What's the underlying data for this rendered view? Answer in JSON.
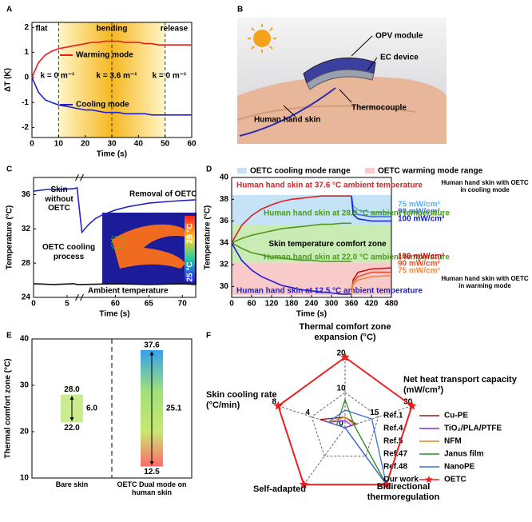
{
  "chart_data": [
    {
      "type": "line",
      "label": "A",
      "xlabel": "Time (s)",
      "ylabel": "ΔT (K)",
      "x": [
        0,
        2.5,
        5,
        7.5,
        10,
        12.5,
        15,
        17.5,
        20,
        22.5,
        25,
        27.5,
        30,
        32.5,
        35,
        37.5,
        40,
        42.5,
        45,
        47.5,
        50,
        52.5,
        55,
        57.5,
        60
      ],
      "xlim": [
        0,
        60
      ],
      "xticks": [
        0,
        10,
        20,
        30,
        40,
        50,
        60
      ],
      "ylim": [
        -2.4,
        2.2
      ],
      "yticks": [
        -2,
        -1,
        0,
        1,
        2
      ],
      "shade": [
        10,
        50
      ],
      "vlines": [
        10,
        30,
        50
      ],
      "annotations": [
        "flat",
        "bending",
        "release",
        "k = 0 m⁻¹",
        "k = 3.6 m⁻¹",
        "k = 0 m⁻¹"
      ],
      "series": [
        {
          "name": "Warming mode",
          "color": "#e8191c",
          "values": [
            0,
            0.6,
            0.9,
            1.05,
            1.15,
            1.2,
            1.25,
            1.3,
            1.35,
            1.4,
            1.4,
            1.45,
            1.45,
            1.45,
            1.4,
            1.4,
            1.4,
            1.35,
            1.35,
            1.3,
            1.3,
            1.3,
            1.3,
            1.3,
            1.3
          ]
        },
        {
          "name": "Cooling mode",
          "color": "#1f1fd6",
          "values": [
            0,
            -0.6,
            -0.9,
            -1.0,
            -1.1,
            -1.15,
            -1.2,
            -1.25,
            -1.3,
            -1.3,
            -1.35,
            -1.4,
            -1.4,
            -1.4,
            -1.45,
            -1.45,
            -1.45,
            -1.45,
            -1.5,
            -1.5,
            -1.5,
            -1.5,
            -1.5,
            -1.5,
            -1.5
          ]
        }
      ]
    },
    {
      "type": "line",
      "label": "C",
      "xlabel": "Time (s)",
      "ylabel": "Temperature (°C)",
      "xlim": [
        0,
        72
      ],
      "xbreak": [
        6.5,
        55
      ],
      "xticks": [
        0,
        5,
        60,
        65,
        70
      ],
      "ylim": [
        24,
        38
      ],
      "yticks": [
        24,
        28,
        32,
        36
      ],
      "annotations": [
        "Skin without OETC",
        "Removal of OETC",
        "OETC cooling process",
        "28 °C",
        "25 °C"
      ],
      "series": [
        {
          "name": "Ambient temperature",
          "color": "#111111",
          "x": [
            0,
            3,
            6,
            6.5,
            55,
            60,
            65,
            70,
            72
          ],
          "values": [
            25.6,
            25.5,
            25.6,
            25.5,
            25.5,
            25.6,
            25.5,
            25.6,
            25.5
          ]
        },
        {
          "color": "#2323c8",
          "x": [
            0,
            2,
            4,
            6,
            6.5,
            55,
            56,
            57,
            58,
            60,
            62,
            65,
            68,
            70,
            72
          ],
          "values": [
            36.4,
            36.6,
            36.6,
            36.7,
            36.8,
            31.6,
            32.5,
            33.2,
            33.6,
            34.2,
            34.6,
            35.0,
            35.2,
            35.3,
            35.4
          ]
        }
      ]
    },
    {
      "type": "line",
      "label": "D",
      "xlabel": "Time (s)",
      "ylabel": "Temperature (°C)",
      "x": [
        0,
        30,
        60,
        90,
        120,
        150,
        180,
        210,
        240,
        270,
        300,
        330,
        360,
        365,
        380,
        420,
        480
      ],
      "xlim": [
        0,
        480
      ],
      "xticks": [
        0,
        60,
        120,
        180,
        240,
        300,
        360,
        420,
        480
      ],
      "ylim": [
        29,
        40
      ],
      "yticks": [
        30,
        32,
        34,
        36,
        38,
        40
      ],
      "bands": [
        {
          "name": "OETC cooling mode range",
          "color": "#c4e3f7",
          "range": [
            35.6,
            38.4
          ]
        },
        {
          "name": "OETC warming mode range",
          "color": "#f8caca",
          "range": [
            29.2,
            32.2
          ]
        }
      ],
      "comfort": {
        "name": "Skin temperature comfort zone",
        "color": "#c9ecb5",
        "range": [
          32.2,
          35.6
        ]
      },
      "annotations": [
        "Human hand skin with OETC in cooling mode",
        "Human hand skin with OETC in warming mode"
      ],
      "series": [
        {
          "name": "Human hand skin at 37.6 °C ambient temperature",
          "color": "#e02020",
          "values": [
            34,
            35.6,
            36.5,
            37.1,
            37.5,
            37.8,
            38.0,
            38.1,
            38.2,
            38.3,
            38.3,
            38.3,
            38.3,
            null,
            null,
            null,
            null
          ]
        },
        {
          "name": "75 mW/cm²",
          "color": "#5ab4f0",
          "values": [
            null,
            null,
            null,
            null,
            null,
            null,
            null,
            null,
            null,
            null,
            null,
            null,
            38.3,
            37.4,
            37.0,
            36.8,
            36.8
          ]
        },
        {
          "name": "90 mW/cm²",
          "color": "#3b6ee6",
          "values": [
            null,
            null,
            null,
            null,
            null,
            null,
            null,
            null,
            null,
            null,
            null,
            null,
            38.3,
            37.0,
            36.6,
            36.4,
            36.4
          ]
        },
        {
          "name": "100 mW/cm²",
          "color": "#1020d0",
          "values": [
            null,
            null,
            null,
            null,
            null,
            null,
            null,
            null,
            null,
            null,
            null,
            null,
            38.3,
            36.6,
            36.2,
            36.0,
            36.0
          ]
        },
        {
          "name": "Human hand skin at 28.0 °C ambient temperature",
          "color": "#4d9a1e",
          "values": [
            34,
            34.4,
            34.7,
            34.9,
            35.1,
            35.3,
            35.4,
            35.5,
            35.6,
            35.7,
            35.7,
            35.8,
            35.8,
            null,
            null,
            null,
            null
          ]
        },
        {
          "name": "Human hand skin at 22.0 °C ambient temperature",
          "color": "#4d9a1e",
          "values": [
            34,
            33.5,
            33.1,
            32.9,
            32.7,
            32.6,
            32.5,
            32.4,
            32.4,
            32.3,
            32.3,
            32.3,
            32.3,
            null,
            null,
            null,
            null
          ]
        },
        {
          "name": "Human hand skin at 12.5 °C ambient temperature",
          "color": "#2020d0",
          "values": [
            34,
            32.4,
            31.5,
            30.9,
            30.5,
            30.1,
            29.9,
            29.7,
            29.6,
            29.5,
            29.4,
            29.3,
            29.3,
            null,
            null,
            null,
            null
          ]
        },
        {
          "name": "100 mW/cm²",
          "color": "#d01010",
          "values": [
            null,
            null,
            null,
            null,
            null,
            null,
            null,
            null,
            null,
            null,
            null,
            null,
            29.3,
            30.6,
            31.3,
            31.6,
            31.7
          ]
        },
        {
          "name": "90 mW/cm²",
          "color": "#e8502a",
          "values": [
            null,
            null,
            null,
            null,
            null,
            null,
            null,
            null,
            null,
            null,
            null,
            null,
            29.3,
            30.4,
            30.9,
            31.3,
            31.3
          ]
        },
        {
          "name": "75 mW/cm²",
          "color": "#f08a3a",
          "values": [
            null,
            null,
            null,
            null,
            null,
            null,
            null,
            null,
            null,
            null,
            null,
            null,
            29.3,
            30.2,
            30.6,
            30.9,
            31.0
          ]
        }
      ]
    },
    {
      "type": "range_bar",
      "label": "E",
      "ylabel": "Thermal comfort zone (°C)",
      "categories": [
        "Bare skin",
        "OETC Dual mode on human skin"
      ],
      "lows": [
        22.0,
        12.5
      ],
      "low_labels": [
        "22.0",
        "12.5"
      ],
      "highs": [
        28.0,
        37.6
      ],
      "high_labels": [
        "28.0",
        "37.6"
      ],
      "spans": [
        6.0,
        25.1
      ],
      "span_labels": [
        "6.0",
        "25.1"
      ],
      "ylim": [
        10,
        40
      ],
      "yticks": [
        10,
        20,
        30,
        40
      ]
    },
    {
      "type": "radar",
      "label": "F",
      "axes": [
        {
          "name": "Thermal comfort zone expansion (°C)",
          "lim": [
            0,
            20
          ],
          "ticks": [
            10,
            20
          ]
        },
        {
          "name": "Net heat transport capacity (mW/cm²)",
          "lim": [
            0,
            30
          ],
          "ticks": [
            15,
            30
          ]
        },
        {
          "name": "Bidirectional thermoregulation",
          "lim": [
            0,
            1
          ],
          "ticks": []
        },
        {
          "name": "Self-adapted",
          "lim": [
            0,
            1
          ],
          "ticks": []
        },
        {
          "name": "Skin cooling rate (°C/min)",
          "lim": [
            0,
            8
          ],
          "ticks": [
            0,
            4,
            8
          ]
        }
      ],
      "series": [
        {
          "name": "Ref.1",
          "material": "Cu-PE",
          "color": "#8b1a1a",
          "values": [
            3,
            5,
            0,
            0,
            3
          ]
        },
        {
          "name": "Ref.4",
          "material": "TiO₂/PLA/PTFE",
          "color": "#8a2be2",
          "values": [
            2,
            3,
            0,
            0,
            2
          ]
        },
        {
          "name": "Ref.5",
          "material": "NFM",
          "color": "#e08a1e",
          "values": [
            3,
            4,
            1,
            0,
            2
          ]
        },
        {
          "name": "Ref.47",
          "material": "Janus film",
          "color": "#2e8b2e",
          "values": [
            8,
            4,
            1,
            0,
            1
          ]
        },
        {
          "name": "Ref.48",
          "material": "NanoPE",
          "color": "#3a6fd8",
          "values": [
            5,
            12,
            1,
            0,
            2
          ]
        },
        {
          "name": "Our work",
          "material": "OETC",
          "color": "#e82020",
          "marker": "star",
          "values": [
            20,
            30,
            1,
            1,
            8
          ]
        }
      ]
    }
  ],
  "diagram": {
    "label": "B",
    "labels": [
      "OPV module",
      "EC device",
      "Thermocouple",
      "Human hand skin"
    ]
  }
}
